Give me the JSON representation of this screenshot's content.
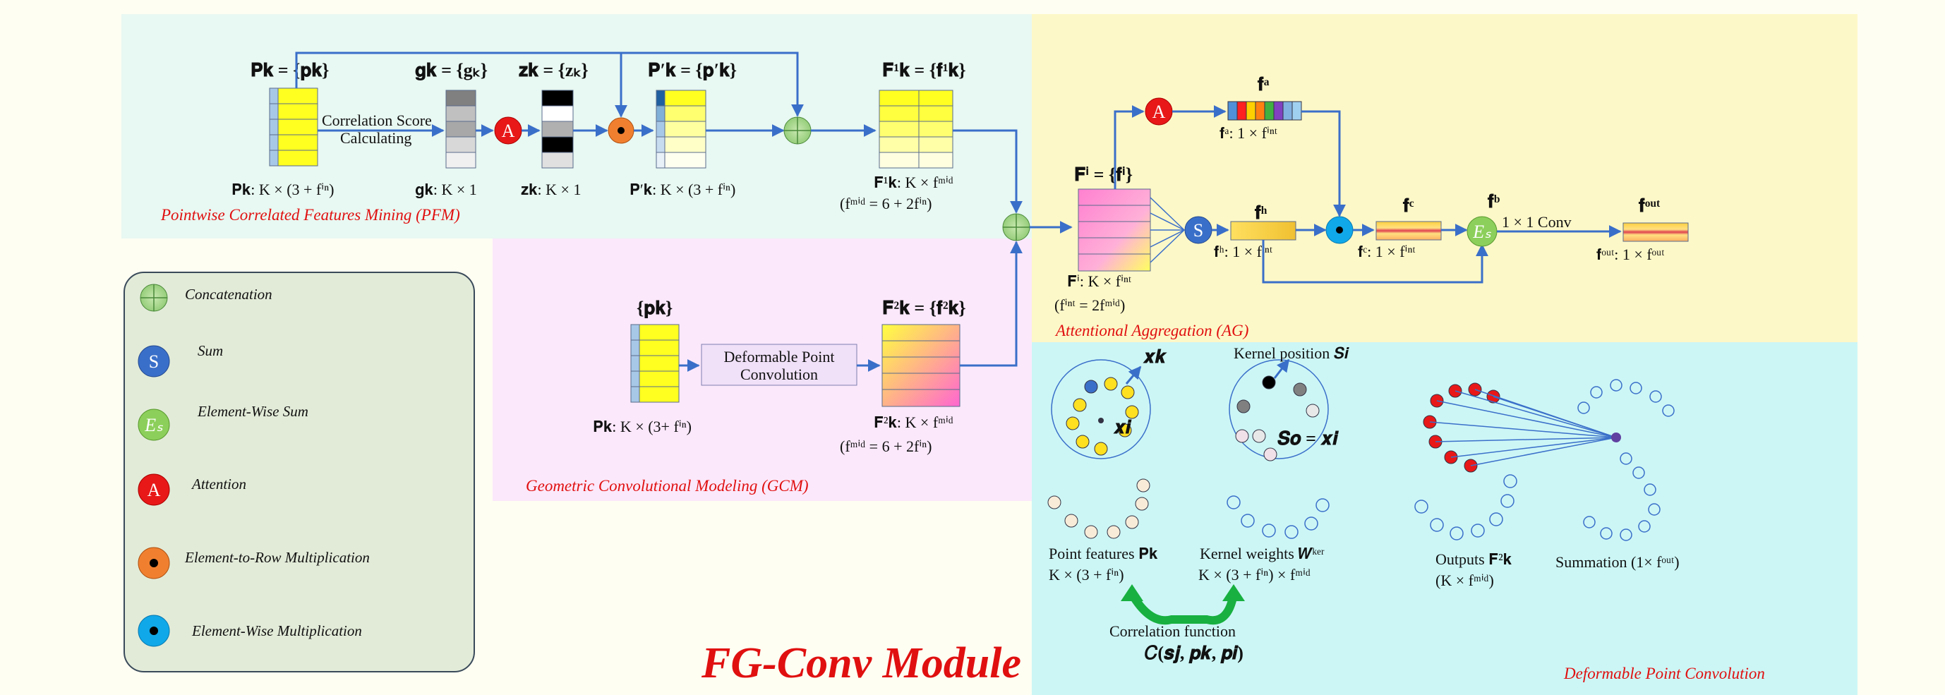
{
  "title": "FG-Conv Module",
  "sections": {
    "pfm": "Pointwise Correlated Features Mining (PFM)",
    "gcm": "Geometric Convolutional Modeling (GCM)",
    "ag": "Attentional Aggregation (AG)",
    "dpc": "Deformable Point Convolution"
  },
  "pfm": {
    "pk_top": "𝐏𝐤 = {𝐩𝐤}",
    "pk_bottom": "𝐏𝐤: K × (3 + fⁱⁿ)",
    "corr_line1": "Correlation Score",
    "corr_line2": "Calculating",
    "gk_top": "𝐠𝐤 = {gₖ}",
    "gk_bottom": "𝐠𝐤: K × 1",
    "zk_top": "𝐳𝐤 = {zₖ}",
    "zk_bottom": "𝐳𝐤: K × 1",
    "pkp_top": "𝐏′𝐤 = {𝐩′𝐤}",
    "pkp_bottom": "𝐏′𝐤: K × (3 + fⁱⁿ)",
    "f1_top": "𝐅¹𝐤 = {𝐟¹𝐤}",
    "f1_bottom": "𝐅¹𝐤: K × fᵐⁱᵈ",
    "f1_eq": "(fᵐⁱᵈ = 6 + 2fⁱⁿ)"
  },
  "gcm": {
    "pk_top": "{𝐩𝐤}",
    "pk_bottom": "𝐏𝐤: K × (3+ fⁱⁿ)",
    "dpc_line1": "Deformable Point",
    "dpc_line2": "Convolution",
    "f2_top": "𝐅²𝐤 = {𝐟²𝐤}",
    "f2_bottom": "𝐅²𝐤: K × fᵐⁱᵈ",
    "f2_eq": "(fᵐⁱᵈ = 6 + 2fⁱⁿ)"
  },
  "ag": {
    "fi_top": "𝐅ⁱ = {𝐟ⁱ}",
    "fi_bottom": "𝐅ⁱ: K × fⁱⁿᵗ",
    "fi_eq": "(fⁱⁿᵗ = 2fᵐⁱᵈ)",
    "fa_top": "𝐟ᵃ",
    "fa_bottom": "𝐟ᵃ: 1 × fⁱⁿᵗ",
    "fh_top": "𝐟ʰ",
    "fh_bottom": "𝐟ʰ: 1 × fⁱⁿᵗ",
    "fc_top": "𝐟ᶜ",
    "fc_bottom": "𝐟ᶜ: 1 × fⁱⁿᵗ",
    "fb_top": "𝐟ᵇ",
    "conv": "1 × 1 Conv",
    "fout_top": "𝐟ᵒᵘᵗ",
    "fout_bottom": "𝐟ᵒᵘᵗ: 1 × fᵒᵘᵗ"
  },
  "dpc": {
    "xk": "𝒙𝒌",
    "xi": "𝒙𝒊",
    "kernel_pos": "Kernel position 𝑺𝒊",
    "so": "𝑺𝒐 = 𝒙𝒊",
    "point_features": "Point features 𝐏𝐤",
    "point_features_dim": "K × (3 + fⁱⁿ)",
    "kernel_weights": "Kernel weights 𝑾ᵏᵉʳ",
    "kernel_weights_dim": "K × (3 + fⁱⁿ) × fᵐⁱᵈ",
    "outputs": "Outputs 𝐅²𝐤",
    "outputs_dim": "(K × fᵐⁱᵈ)",
    "summation": "Summation (1× fᵒᵘᵗ)",
    "corr_fn": "Correlation function",
    "corr_fn_expr": "𝐶(𝒔𝒋, 𝒑𝒌, 𝒑𝒊)"
  },
  "legend": {
    "items": [
      {
        "symbol": "",
        "label": "Concatenation"
      },
      {
        "symbol": "S",
        "label": "Sum"
      },
      {
        "symbol": "Eₛ",
        "label": "Element-Wise Sum"
      },
      {
        "symbol": "A",
        "label": "Attention"
      },
      {
        "symbol": "",
        "label": "Element-to-Row Multiplication"
      },
      {
        "symbol": "",
        "label": "Element-Wise Multiplication"
      }
    ]
  },
  "symbols": {
    "A": "A",
    "S": "S",
    "Es": "Eₛ"
  },
  "colors": {
    "pfm_bg": "#e8f8f2",
    "gcm_bg": "#fbe8fb",
    "ag_bg": "#fdf8c8",
    "dpc_bg": "#ccf6f6",
    "legend_bg": "#e2ebd8",
    "arrow": "#3a6fc9",
    "accent_red": "#e01010",
    "feature_yellow": "#ffff20"
  }
}
